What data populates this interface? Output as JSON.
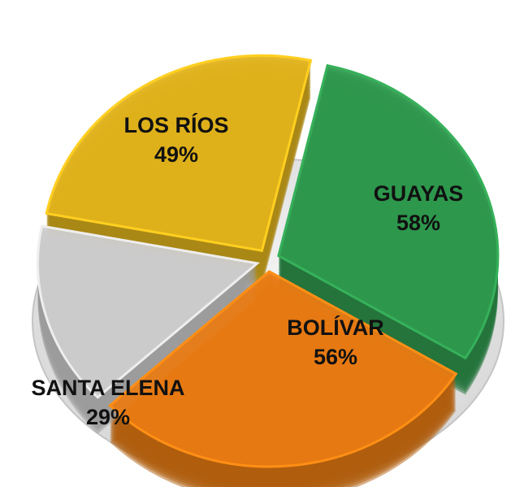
{
  "chart_data": {
    "type": "pie",
    "categories": [
      "LOS RÍOS",
      "GUAYAS",
      "BOLÍVAR",
      "SANTA ELENA"
    ],
    "values": [
      49,
      58,
      56,
      29
    ],
    "value_labels": [
      "49%",
      "58%",
      "56%",
      "29%"
    ],
    "colors": [
      "#e3b41c",
      "#2f9a4e",
      "#ea7c12",
      "#cfcfcf"
    ]
  }
}
